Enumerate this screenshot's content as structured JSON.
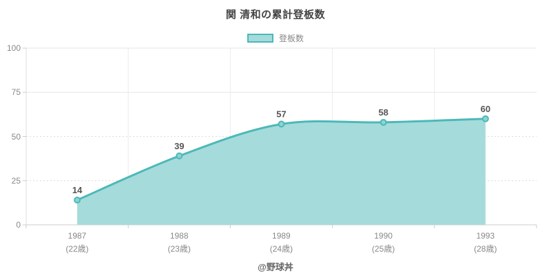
{
  "title": "関 清和の累計登板数",
  "legend": {
    "label": "登板数"
  },
  "footer": "@野球丼",
  "colors": {
    "line": "#4CB8B8",
    "area_fill": "#A6DBDB",
    "marker_fill": "#8FD2D2",
    "value_label": "#555555",
    "axis_label": "#888888",
    "grid_solid": "#E6E6E6",
    "grid_dashed": "#DCDCDC",
    "grid_vertical": "#ECECEC",
    "axis_line": "#CCCCCC",
    "title_color": "#444444",
    "footer_color": "#666666"
  },
  "chart_data": {
    "type": "area",
    "title": "関 清和の累計登板数",
    "series_name": "登板数",
    "categories": [
      "1987",
      "1988",
      "1989",
      "1990",
      "1993"
    ],
    "category_sublabels": [
      "(22歳)",
      "(23歳)",
      "(24歳)",
      "(25歳)",
      "(28歳)"
    ],
    "values": [
      14,
      39,
      57,
      58,
      60
    ],
    "value_labels": [
      "14",
      "39",
      "57",
      "58",
      "60"
    ],
    "ylim": [
      0,
      100
    ],
    "yticks": [
      0,
      25,
      50,
      75,
      100
    ],
    "line_smoothing": "spline",
    "grid": "horizontal (dashed at 25/50, solid at 75/100) + vertical category separators",
    "legend_position": "top-center",
    "footer_annotation": "@野球丼"
  }
}
